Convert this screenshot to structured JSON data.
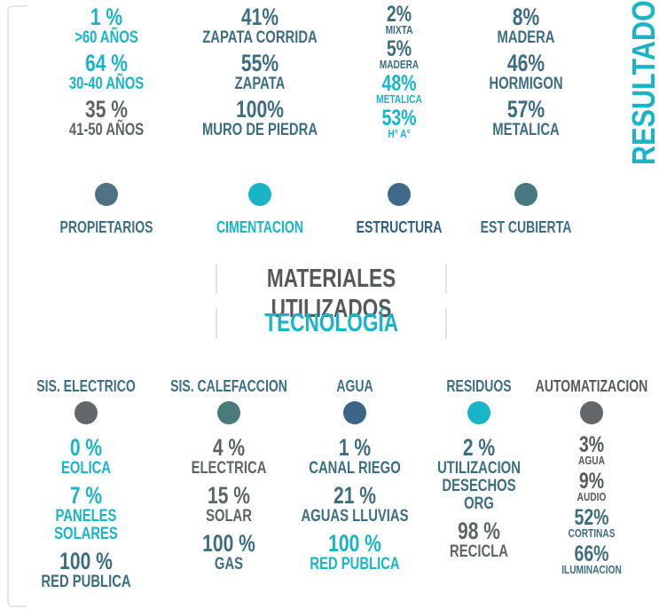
{
  "side_title": "RESULTADOS",
  "top_groups": [
    {
      "label": "PROPIETARIOS",
      "color": "#4f7282",
      "label_color": "#3d6f80",
      "items": [
        {
          "value": "1 %",
          "label": ">60 AÑOS",
          "color": "#19b4c6"
        },
        {
          "value": "64 %",
          "label": "30-40 AÑOS",
          "color": "#19b4c6"
        },
        {
          "value": "35 %",
          "label": "41-50 AÑOS",
          "color": "#5f6466"
        }
      ]
    },
    {
      "label": "CIMENTACION",
      "color": "#19b4c6",
      "label_color": "#19b4c6",
      "items": [
        {
          "value": "41%",
          "label": "ZAPATA CORRIDA",
          "color": "#3d6e80"
        },
        {
          "value": "55%",
          "label": "ZAPATA",
          "color": "#3d6e80"
        },
        {
          "value": "100%",
          "label": "MURO DE PIEDRA",
          "color": "#3d6e80"
        }
      ]
    },
    {
      "label": "ESTRUCTURA",
      "color": "#3f6a8c",
      "label_color": "#2f5f80",
      "items": [
        {
          "value": "2%",
          "label": "MIXTA",
          "color": "#3d6e80"
        },
        {
          "value": "5%",
          "label": "MADERA",
          "color": "#3d6e80"
        },
        {
          "value": "48%",
          "label": "METALICA",
          "color": "#19b4c6"
        },
        {
          "value": "53%",
          "label": "H° A°",
          "color": "#19b4c6"
        }
      ]
    },
    {
      "label": "EST CUBIERTA",
      "color": "#467a80",
      "label_color": "#3d6f80",
      "items": [
        {
          "value": "8%",
          "label": "MADERA",
          "color": "#3d6e80"
        },
        {
          "value": "46%",
          "label": "HORMIGON",
          "color": "#3d6e80"
        },
        {
          "value": "57%",
          "label": "METALICA",
          "color": "#3d6e80"
        }
      ]
    }
  ],
  "headings": [
    "MATERIALES UTILIZADOS",
    "TECNOLOGÍA"
  ],
  "heading_colors": [
    "#55595b",
    "#19b4c6"
  ],
  "bottom_groups": [
    {
      "label": "SIS. ELECTRICO",
      "color": "#636769",
      "label_color": "#3d6f80",
      "items": [
        {
          "value": "0 %",
          "label": "EOLICA",
          "color": "#19b4c6"
        },
        {
          "value": "7 %",
          "label": "PANELES SOLARES",
          "color": "#19b4c6"
        },
        {
          "value": "100 %",
          "label": "RED PUBLICA",
          "color": "#3d6e80"
        }
      ]
    },
    {
      "label": "SIS. CALEFACCION",
      "color": "#4a7a7c",
      "label_color": "#3d6f80",
      "items": [
        {
          "value": "4 %",
          "label": "ELECTRICA",
          "color": "#5f6466"
        },
        {
          "value": "15 %",
          "label": "SOLAR",
          "color": "#5f6466"
        },
        {
          "value": "100 %",
          "label": "GAS",
          "color": "#3d6e80"
        }
      ]
    },
    {
      "label": "AGUA",
      "color": "#3c6588",
      "label_color": "#3d6f80",
      "items": [
        {
          "value": "1 %",
          "label": "CANAL RIEGO",
          "color": "#3d6e80"
        },
        {
          "value": "21 %",
          "label": "AGUAS LLUVIAS",
          "color": "#3d6e80"
        },
        {
          "value": "100 %",
          "label": "RED PUBLICA",
          "color": "#19b4c6"
        }
      ]
    },
    {
      "label": "RESIDUOS",
      "color": "#19b4c6",
      "label_color": "#3d6f80",
      "items": [
        {
          "value": "2 %",
          "label": "UTILIZACION DESECHOS ORG",
          "color": "#3d6e80"
        },
        {
          "value": "98 %",
          "label": "RECICLA",
          "color": "#5f6466"
        }
      ]
    },
    {
      "label": "AUTOMATIZACION",
      "color": "#636769",
      "label_color": "#55595b",
      "items": [
        {
          "value": "3%",
          "label": "AGUA",
          "color": "#55595b"
        },
        {
          "value": "9%",
          "label": "AUDIO",
          "color": "#55595b"
        },
        {
          "value": "52%",
          "label": "CORTINAS",
          "color": "#3d6e80"
        },
        {
          "value": "66%",
          "label": "ILUMINACION",
          "color": "#3d6e80"
        }
      ]
    }
  ]
}
